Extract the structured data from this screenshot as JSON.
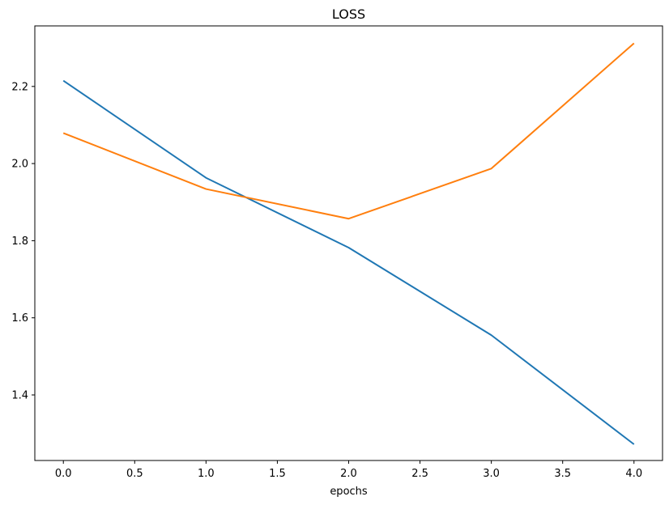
{
  "chart_data": {
    "type": "line",
    "title": "LOSS",
    "xlabel": "epochs",
    "ylabel": "",
    "x": [
      0,
      1,
      2,
      3,
      4
    ],
    "series": [
      {
        "values": [
          2.215,
          1.963,
          1.782,
          1.555,
          1.272
        ],
        "color": "#1f77b4"
      },
      {
        "values": [
          2.079,
          1.934,
          1.857,
          1.987,
          2.312
        ],
        "color": "#ff7f0e"
      }
    ],
    "xlim": [
      -0.2,
      4.2
    ],
    "ylim": [
      1.23,
      2.357
    ],
    "xticks": [
      0.0,
      0.5,
      1.0,
      1.5,
      2.0,
      2.5,
      3.0,
      3.5,
      4.0
    ],
    "xtick_labels": [
      "0.0",
      "0.5",
      "1.0",
      "1.5",
      "2.0",
      "2.5",
      "3.0",
      "3.5",
      "4.0"
    ],
    "yticks": [
      1.4,
      1.6,
      1.8,
      2.0,
      2.2
    ],
    "ytick_labels": [
      "1.4",
      "1.6",
      "1.8",
      "2.0",
      "2.2"
    ],
    "grid": false,
    "legend": "none"
  }
}
